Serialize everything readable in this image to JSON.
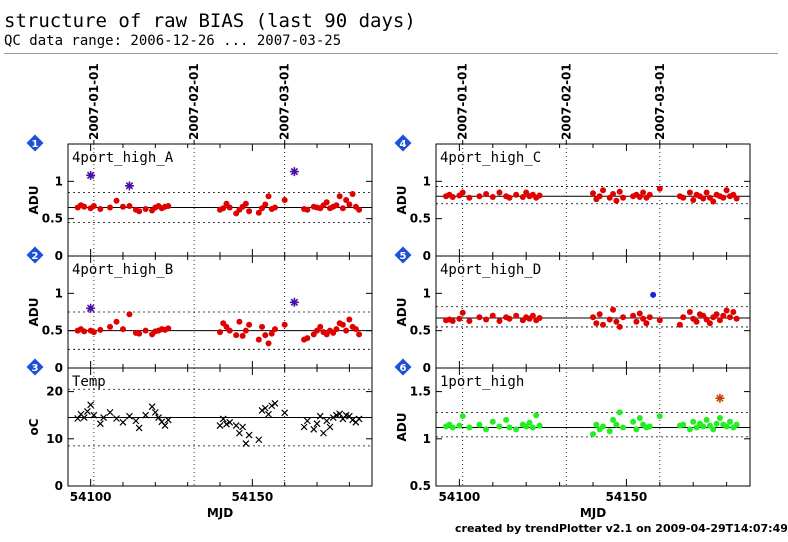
{
  "title": "structure of raw BIAS (last 90 days)",
  "subtitle": "QC data range: 2006-12-26 ... 2007-03-25",
  "credit": "created by trendPlotter v2.1 on 2009-04-29T14:07:49",
  "colors": {
    "red": "#e00000",
    "outlier": "#4b0fa8",
    "green": "#22ee22",
    "orange": "#cc4400",
    "badge": "#1f4fd8"
  },
  "chart_data": [
    {
      "id": "p1",
      "type": "scatter",
      "badge": "1",
      "label": "4port_high_A",
      "ylabel": "ADU",
      "xlim": [
        54093,
        54187
      ],
      "ylim": [
        0,
        1.5
      ],
      "yticks": [
        0,
        0.5,
        1
      ],
      "ytick_labels": [
        "0",
        "0.5",
        "1"
      ],
      "ref_line": 0.65,
      "band": [
        0.45,
        0.85
      ],
      "series": [
        {
          "marker": "dot",
          "color": "#e00000",
          "x": [
            54096,
            54097,
            54098,
            54100,
            54101,
            54103,
            54106,
            54108,
            54110,
            54112,
            54114,
            54115,
            54117,
            54119,
            54120,
            54121,
            54122,
            54123,
            54124,
            54140,
            54141,
            54142,
            54143,
            54145,
            54146,
            54147,
            54148,
            54149,
            54152,
            54153,
            54154,
            54155,
            54156,
            54157,
            54160,
            54166,
            54167,
            54169,
            54170,
            54171,
            54172,
            54173,
            54174,
            54175,
            54176,
            54177,
            54178,
            54179,
            54180,
            54181,
            54182,
            54183
          ],
          "y": [
            0.65,
            0.68,
            0.66,
            0.64,
            0.67,
            0.63,
            0.65,
            0.74,
            0.66,
            0.67,
            0.62,
            0.6,
            0.63,
            0.61,
            0.65,
            0.67,
            0.64,
            0.66,
            0.67,
            0.62,
            0.64,
            0.7,
            0.65,
            0.57,
            0.62,
            0.66,
            0.7,
            0.6,
            0.58,
            0.64,
            0.69,
            0.8,
            0.63,
            0.65,
            0.75,
            0.63,
            0.62,
            0.66,
            0.65,
            0.64,
            0.68,
            0.72,
            0.64,
            0.66,
            0.68,
            0.8,
            0.64,
            0.75,
            0.69,
            0.83,
            0.66,
            0.62
          ]
        },
        {
          "marker": "star",
          "color": "#4b0fa8",
          "x": [
            54100,
            54112,
            54163
          ],
          "y": [
            1.08,
            0.94,
            1.13
          ]
        }
      ]
    },
    {
      "id": "p2",
      "type": "scatter",
      "badge": "2",
      "label": "4port_high_B",
      "ylabel": "ADU",
      "xlim": [
        54093,
        54187
      ],
      "ylim": [
        0,
        1.5
      ],
      "yticks": [
        0,
        0.5,
        1
      ],
      "ytick_labels": [
        "0",
        "0.5",
        "1"
      ],
      "ref_line": 0.5,
      "band": [
        0.25,
        0.75
      ],
      "series": [
        {
          "marker": "dot",
          "color": "#e00000",
          "x": [
            54096,
            54097,
            54098,
            54100,
            54101,
            54103,
            54106,
            54108,
            54110,
            54112,
            54114,
            54115,
            54117,
            54119,
            54120,
            54121,
            54122,
            54123,
            54124,
            54140,
            54141,
            54142,
            54143,
            54145,
            54146,
            54147,
            54148,
            54149,
            54152,
            54153,
            54154,
            54155,
            54156,
            54157,
            54160,
            54166,
            54167,
            54169,
            54170,
            54171,
            54172,
            54173,
            54174,
            54175,
            54176,
            54177,
            54178,
            54179,
            54180,
            54181,
            54182,
            54183
          ],
          "y": [
            0.5,
            0.52,
            0.49,
            0.5,
            0.48,
            0.51,
            0.55,
            0.62,
            0.52,
            0.72,
            0.47,
            0.46,
            0.5,
            0.45,
            0.49,
            0.5,
            0.52,
            0.51,
            0.53,
            0.48,
            0.6,
            0.55,
            0.5,
            0.44,
            0.62,
            0.43,
            0.5,
            0.58,
            0.38,
            0.55,
            0.44,
            0.33,
            0.46,
            0.52,
            0.58,
            0.38,
            0.4,
            0.45,
            0.5,
            0.55,
            0.48,
            0.45,
            0.5,
            0.47,
            0.52,
            0.6,
            0.58,
            0.5,
            0.65,
            0.55,
            0.52,
            0.45
          ]
        },
        {
          "marker": "star",
          "color": "#4b0fa8",
          "x": [
            54100,
            54163
          ],
          "y": [
            0.8,
            0.88
          ]
        }
      ]
    },
    {
      "id": "p3",
      "type": "scatter",
      "badge": "3",
      "label": "Temp",
      "ylabel": "oC",
      "xlim": [
        54093,
        54187
      ],
      "ylim": [
        0,
        25
      ],
      "yticks": [
        0,
        10,
        20
      ],
      "ytick_labels": [
        "0",
        "10",
        "20"
      ],
      "ref_line": 14.5,
      "band": [
        8.5,
        20.5
      ],
      "xticks": [
        54100,
        54150
      ],
      "xtick_labels": [
        "54100",
        "54150"
      ],
      "xlabel": "MJD",
      "series": [
        {
          "marker": "cross",
          "color": "#000000",
          "x": [
            54096,
            54097,
            54098,
            54099,
            54100,
            54101,
            54103,
            54104,
            54106,
            54108,
            54110,
            54112,
            54114,
            54115,
            54117,
            54119,
            54120,
            54121,
            54122,
            54123,
            54124,
            54140,
            54141,
            54142,
            54143,
            54145,
            54146,
            54147,
            54148,
            54149,
            54152,
            54153,
            54154,
            54155,
            54156,
            54157,
            54160,
            54166,
            54167,
            54169,
            54170,
            54171,
            54172,
            54173,
            54174,
            54175,
            54176,
            54177,
            54178,
            54179,
            54180,
            54181,
            54182,
            54183
          ],
          "y": [
            14.3,
            15.2,
            14.5,
            15.8,
            17.2,
            15.0,
            13.2,
            14.5,
            15.6,
            14.3,
            13.5,
            14.8,
            13.8,
            12.3,
            15.0,
            16.8,
            15.6,
            14.5,
            13.6,
            12.8,
            14.0,
            12.8,
            14.2,
            13.1,
            13.5,
            12.8,
            11.2,
            12.5,
            9.0,
            10.8,
            9.8,
            16.0,
            16.5,
            15.2,
            17.0,
            17.5,
            15.5,
            12.5,
            13.8,
            12.0,
            13.2,
            14.8,
            11.2,
            13.8,
            12.5,
            14.5,
            15.0,
            15.3,
            14.2,
            15.0,
            14.8,
            14.0,
            13.5,
            14.2
          ]
        }
      ]
    },
    {
      "id": "p4",
      "type": "scatter",
      "badge": "4",
      "label": "4port_high_C",
      "ylabel": "ADU",
      "xlim": [
        54093,
        54187
      ],
      "ylim": [
        0,
        1.5
      ],
      "yticks": [
        0,
        0.5,
        1
      ],
      "ytick_labels": [
        "0",
        "0.5",
        "1"
      ],
      "ref_line": 0.8,
      "band": [
        0.7,
        0.93
      ],
      "series": [
        {
          "marker": "dot",
          "color": "#e00000",
          "x": [
            54096,
            54097,
            54098,
            54100,
            54101,
            54103,
            54106,
            54108,
            54110,
            54112,
            54114,
            54115,
            54117,
            54119,
            54120,
            54121,
            54122,
            54123,
            54124,
            54140,
            54141,
            54142,
            54143,
            54145,
            54146,
            54147,
            54148,
            54149,
            54152,
            54153,
            54154,
            54155,
            54156,
            54157,
            54160,
            54166,
            54167,
            54169,
            54170,
            54171,
            54172,
            54173,
            54174,
            54175,
            54176,
            54177,
            54178,
            54179,
            54180,
            54181,
            54182,
            54183
          ],
          "y": [
            0.8,
            0.82,
            0.79,
            0.81,
            0.85,
            0.78,
            0.8,
            0.83,
            0.79,
            0.85,
            0.8,
            0.78,
            0.82,
            0.79,
            0.85,
            0.8,
            0.82,
            0.78,
            0.81,
            0.84,
            0.76,
            0.8,
            0.88,
            0.78,
            0.83,
            0.74,
            0.86,
            0.78,
            0.8,
            0.82,
            0.79,
            0.85,
            0.78,
            0.82,
            0.9,
            0.8,
            0.78,
            0.85,
            0.75,
            0.82,
            0.8,
            0.77,
            0.85,
            0.78,
            0.73,
            0.82,
            0.8,
            0.78,
            0.88,
            0.8,
            0.82,
            0.77
          ]
        }
      ]
    },
    {
      "id": "p5",
      "type": "scatter",
      "badge": "5",
      "label": "4port_high_D",
      "ylabel": "ADU",
      "xlim": [
        54093,
        54187
      ],
      "ylim": [
        0,
        1.5
      ],
      "yticks": [
        0,
        0.5,
        1
      ],
      "ytick_labels": [
        "0",
        "0.5",
        "1"
      ],
      "ref_line": 0.67,
      "band": [
        0.55,
        0.82
      ],
      "series": [
        {
          "marker": "dot",
          "color": "#e00000",
          "x": [
            54096,
            54097,
            54098,
            54100,
            54101,
            54103,
            54106,
            54108,
            54110,
            54112,
            54114,
            54115,
            54117,
            54119,
            54120,
            54121,
            54122,
            54123,
            54124,
            54140,
            54141,
            54142,
            54143,
            54145,
            54146,
            54147,
            54148,
            54149,
            54152,
            54153,
            54154,
            54155,
            54156,
            54157,
            54160,
            54166,
            54167,
            54169,
            54170,
            54171,
            54172,
            54173,
            54174,
            54175,
            54176,
            54177,
            54178,
            54179,
            54180,
            54181,
            54182,
            54183
          ],
          "y": [
            0.64,
            0.65,
            0.63,
            0.66,
            0.74,
            0.63,
            0.68,
            0.65,
            0.7,
            0.63,
            0.68,
            0.66,
            0.7,
            0.64,
            0.68,
            0.66,
            0.7,
            0.64,
            0.67,
            0.68,
            0.6,
            0.72,
            0.58,
            0.65,
            0.78,
            0.62,
            0.55,
            0.68,
            0.7,
            0.62,
            0.73,
            0.66,
            0.6,
            0.68,
            0.64,
            0.58,
            0.68,
            0.75,
            0.66,
            0.62,
            0.72,
            0.7,
            0.65,
            0.6,
            0.68,
            0.72,
            0.64,
            0.7,
            0.77,
            0.68,
            0.75,
            0.66
          ]
        },
        {
          "marker": "dot",
          "color": "#2020dd",
          "x": [
            54158
          ],
          "y": [
            0.98
          ]
        }
      ]
    },
    {
      "id": "p6",
      "type": "scatter",
      "badge": "6",
      "label": "1port_high",
      "ylabel": "ADU",
      "xlim": [
        54093,
        54187
      ],
      "ylim": [
        0.5,
        1.75
      ],
      "yticks": [
        0.5,
        1,
        1.5
      ],
      "ytick_labels": [
        "0.5",
        "1",
        "1.5"
      ],
      "ref_line": 1.12,
      "band": [
        1.02,
        1.28
      ],
      "xticks": [
        54100,
        54150
      ],
      "xtick_labels": [
        "54100",
        "54150"
      ],
      "xlabel": "MJD",
      "series": [
        {
          "marker": "dot",
          "color": "#22ee22",
          "x": [
            54096,
            54097,
            54098,
            54100,
            54101,
            54103,
            54106,
            54108,
            54110,
            54112,
            54114,
            54115,
            54117,
            54119,
            54120,
            54121,
            54122,
            54123,
            54124,
            54140,
            54141,
            54142,
            54143,
            54145,
            54146,
            54147,
            54148,
            54149,
            54152,
            54153,
            54154,
            54155,
            54156,
            54157,
            54160,
            54166,
            54167,
            54169,
            54170,
            54171,
            54172,
            54173,
            54174,
            54175,
            54176,
            54177,
            54178,
            54179,
            54180,
            54181,
            54182,
            54183
          ],
          "y": [
            1.13,
            1.15,
            1.12,
            1.14,
            1.24,
            1.12,
            1.15,
            1.1,
            1.18,
            1.13,
            1.2,
            1.12,
            1.1,
            1.15,
            1.13,
            1.17,
            1.12,
            1.25,
            1.14,
            1.05,
            1.15,
            1.1,
            1.13,
            1.08,
            1.2,
            1.15,
            1.28,
            1.12,
            1.18,
            1.1,
            1.22,
            1.15,
            1.12,
            1.13,
            1.24,
            1.14,
            1.15,
            1.1,
            1.18,
            1.12,
            1.16,
            1.13,
            1.2,
            1.14,
            1.1,
            1.16,
            1.22,
            1.15,
            1.13,
            1.18,
            1.12,
            1.15
          ]
        },
        {
          "marker": "star",
          "color": "#cc4400",
          "x": [
            54178
          ],
          "y": [
            1.43
          ]
        }
      ]
    }
  ],
  "date_axis": {
    "dates": [
      "2007-01-01",
      "2007-02-01",
      "2007-03-01"
    ],
    "mjd": [
      54101,
      54132,
      54160
    ]
  }
}
